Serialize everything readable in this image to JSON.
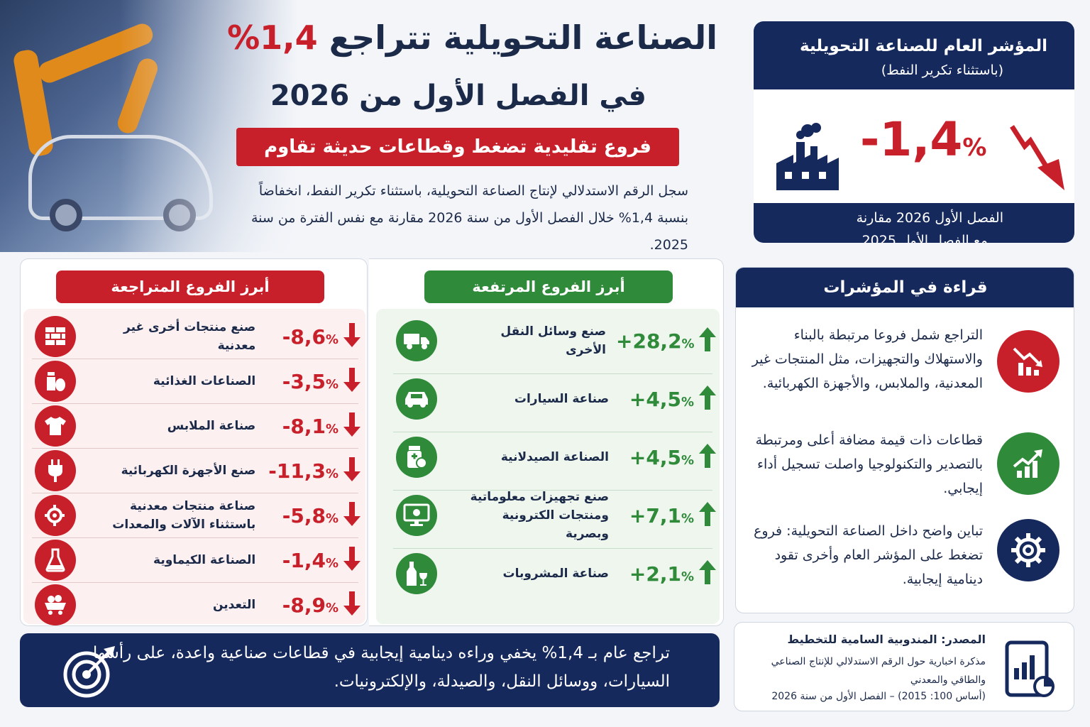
{
  "hero": {
    "title_line1_text": "الصناعة التحويلية تتراجع",
    "title_line1_value": "1,4%",
    "title_line2": "في الفصل الأول من 2026",
    "subtitle": "فروع تقليدية تضغط وقطاعات حديثة تقاوم",
    "intro": "سجل الرقم الاستدلالي لإنتاج الصناعة التحويلية، باستثناء تكرير النفط، انخفاضاً بنسبة 1,4% خلال الفصل الأول من سنة 2026 مقارنة مع نفس الفترة من سنة 2025."
  },
  "kpi": {
    "title": "المؤشر العام للصناعة التحويلية",
    "subtitle": "(باستثناء تكرير النفط)",
    "value": "-1,4",
    "unit": "%",
    "footer_line1": "الفصل الأول 2026 مقارنة",
    "footer_line2": "مع الفصل الأول 2025",
    "icon_factory": "factory-icon",
    "icon_trend": "trend-down-arrow-icon"
  },
  "declining": {
    "title": "أبرز الفروع المتراجعة",
    "color": "#c8202a",
    "items": [
      {
        "label": "صنع منتجات أخرى غير معدنية",
        "value": "-8,6",
        "unit": "%",
        "icon": "bricks-icon"
      },
      {
        "label": "الصناعات الغذائية",
        "value": "-3,5",
        "unit": "%",
        "icon": "food-icon"
      },
      {
        "label": "صناعة الملابس",
        "value": "-8,1",
        "unit": "%",
        "icon": "tshirt-icon"
      },
      {
        "label": "صنع الأجهزة الكهربائية",
        "value": "-11,3",
        "unit": "%",
        "icon": "plug-icon"
      },
      {
        "label": "صناعة منتجات معدنية باستثناء الآلات والمعدات",
        "value": "-5,8",
        "unit": "%",
        "icon": "gear-tool-icon"
      },
      {
        "label": "الصناعة الكيماوية",
        "value": "-1,4",
        "unit": "%",
        "icon": "flask-icon"
      },
      {
        "label": "التعدين",
        "value": "-8,9",
        "unit": "%",
        "icon": "mine-cart-icon"
      }
    ]
  },
  "rising": {
    "title": "أبرز الفروع المرتفعة",
    "color": "#2f8a3a",
    "items": [
      {
        "label": "صنع وسائل النقل الأخرى",
        "value": "+28,2",
        "unit": "%",
        "icon": "truck-icon"
      },
      {
        "label": "صناعة السيارات",
        "value": "+4,5",
        "unit": "%",
        "icon": "car-icon"
      },
      {
        "label": "الصناعة الصيدلانية",
        "value": "+4,5",
        "unit": "%",
        "icon": "pill-bottle-icon"
      },
      {
        "label": "صنع تجهيزات معلوماتية ومنتجات الكترونية وبصرية",
        "value": "+7,1",
        "unit": "%",
        "icon": "computer-icon"
      },
      {
        "label": "صناعة المشروبات",
        "value": "+2,1",
        "unit": "%",
        "icon": "bottle-glass-icon"
      }
    ]
  },
  "reading": {
    "title": "قراءة في المؤشرات",
    "items": [
      {
        "text": "التراجع شمل فروعا مرتبطة بالبناء والاستهلاك والتجهيزات، مثل المنتجات غير المعدنية، والملابس، والأجهزة الكهربائية.",
        "icon": "chart-down-icon",
        "color": "#c8202a"
      },
      {
        "text": "قطاعات ذات قيمة مضافة أعلى ومرتبطة بالتصدير والتكنولوجيا واصلت تسجيل أداء إيجابي.",
        "icon": "chart-up-icon",
        "color": "#2f8a3a"
      },
      {
        "text": "تباين واضح داخل الصناعة التحويلية: فروع تضغط على المؤشر العام وأخرى تقود دينامية إيجابية.",
        "icon": "gear-icon",
        "color": "#16295c"
      }
    ]
  },
  "banner": {
    "text": "تراجع عام بـ 1,4% يخفي وراءه دينامية إيجابية في قطاعات صناعية واعدة، على رأسها السيارات، ووسائل النقل، والصيدلة، والإلكترونيات.",
    "icon": "target-icon"
  },
  "source": {
    "title": "المصدر: المندوبية السامية للتخطيط",
    "text": "مذكرة اخبارية حول الرقم الاستدلالي للإنتاج الصناعي والطاقي والمعدني",
    "base": "(أساس 100: 2015) – الفصل الأول من سنة 2026",
    "icon": "report-chart-icon"
  }
}
